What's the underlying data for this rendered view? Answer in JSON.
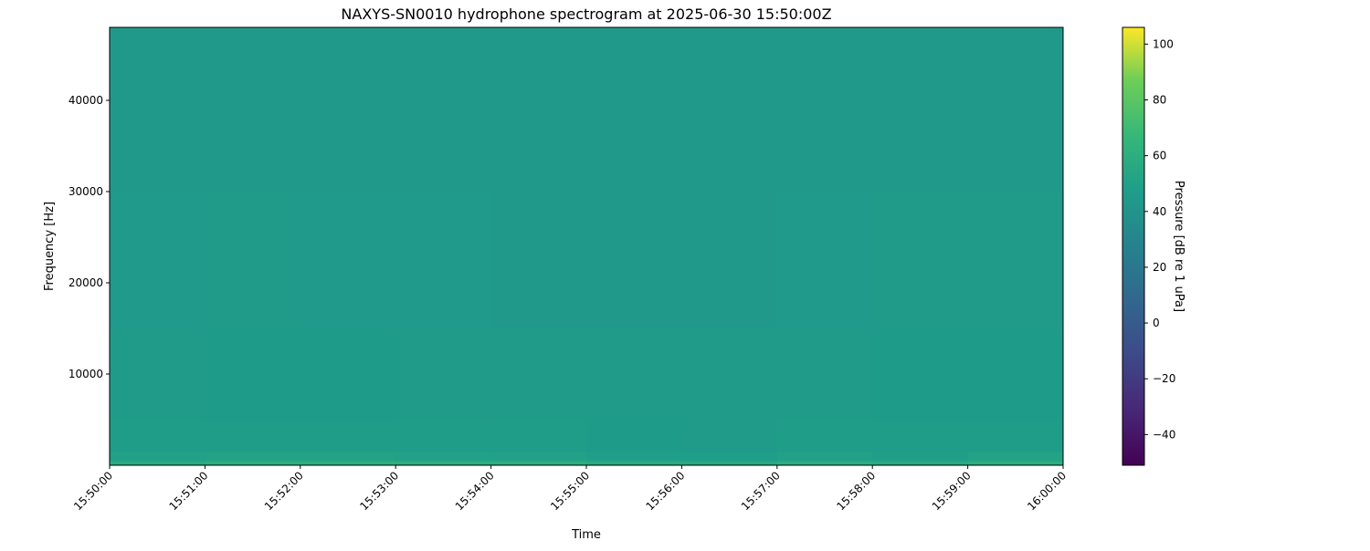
{
  "chart_data": {
    "type": "heatmap",
    "title": "NAXYS-SN0010 hydrophone spectrogram at 2025-06-30 15:50:00Z",
    "xlabel": "Time",
    "ylabel": "Frequency [Hz]",
    "colorbar_label": "Pressure [dB re 1 uPa]",
    "colormap": "viridis",
    "clim": [
      -51,
      106
    ],
    "ylim": [
      0,
      48000
    ],
    "xlim": [
      "15:50:00",
      "16:00:00"
    ],
    "x_ticks": [
      "15:50:00",
      "15:51:00",
      "15:52:00",
      "15:53:00",
      "15:54:00",
      "15:55:00",
      "15:56:00",
      "15:57:00",
      "15:58:00",
      "15:59:00",
      "16:00:00"
    ],
    "y_ticks": [
      10000,
      20000,
      30000,
      40000
    ],
    "colorbar_ticks": [
      -40,
      -20,
      0,
      20,
      40,
      60,
      80,
      100
    ],
    "grid": false,
    "time_bins": [
      "15:50:00",
      "15:51:00",
      "15:52:00",
      "15:53:00",
      "15:54:00",
      "15:55:00",
      "15:56:00",
      "15:57:00",
      "15:58:00",
      "15:59:00"
    ],
    "freq_bins_hz": [
      [
        0,
        500
      ],
      [
        500,
        1500
      ],
      [
        1500,
        5000
      ],
      [
        5000,
        15000
      ],
      [
        15000,
        30000
      ],
      [
        30000,
        48000
      ]
    ],
    "values_db": [
      [
        58,
        60,
        61,
        60,
        60,
        57,
        56,
        59,
        57,
        60
      ],
      [
        50,
        51,
        51,
        50,
        50,
        49,
        48,
        50,
        49,
        51
      ],
      [
        47,
        47.5,
        47.5,
        47,
        47,
        46.5,
        46,
        47,
        47,
        47.5
      ],
      [
        46,
        46.5,
        46.5,
        46,
        46,
        45.5,
        45.5,
        46,
        46.5,
        46.5
      ],
      [
        45,
        45.5,
        45,
        45,
        44.5,
        44.5,
        44.5,
        45,
        45.5,
        45.5
      ],
      [
        44.5,
        44.5,
        44.5,
        44.5,
        44,
        44,
        44,
        44.5,
        44.5,
        44.5
      ]
    ]
  }
}
